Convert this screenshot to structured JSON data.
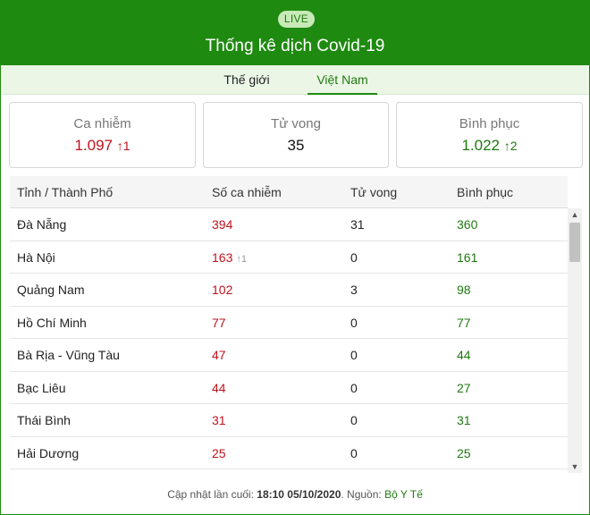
{
  "header": {
    "live_badge": "LIVE",
    "title": "Thống kê dịch Covid-19"
  },
  "tabs": [
    {
      "label": "Thế giới",
      "active": false
    },
    {
      "label": "Việt Nam",
      "active": true
    }
  ],
  "summary": {
    "cases": {
      "label": "Ca nhiễm",
      "value": "1.097",
      "delta": "1"
    },
    "deaths": {
      "label": "Tử vong",
      "value": "35"
    },
    "recovered": {
      "label": "Bình phục",
      "value": "1.022",
      "delta": "2"
    }
  },
  "table": {
    "headers": [
      "Tỉnh / Thành Phố",
      "Số ca nhiễm",
      "Tử vong",
      "Bình phục"
    ],
    "rows": [
      {
        "province": "Đà Nẵng",
        "cases": "394",
        "cases_delta": "",
        "deaths": "31",
        "recovered": "360"
      },
      {
        "province": "Hà Nội",
        "cases": "163",
        "cases_delta": "1",
        "deaths": "0",
        "recovered": "161"
      },
      {
        "province": "Quảng Nam",
        "cases": "102",
        "cases_delta": "",
        "deaths": "3",
        "recovered": "98"
      },
      {
        "province": "Hồ Chí Minh",
        "cases": "77",
        "cases_delta": "",
        "deaths": "0",
        "recovered": "77"
      },
      {
        "province": "Bà Rịa - Vũng Tàu",
        "cases": "47",
        "cases_delta": "",
        "deaths": "0",
        "recovered": "44"
      },
      {
        "province": "Bạc Liêu",
        "cases": "44",
        "cases_delta": "",
        "deaths": "0",
        "recovered": "27"
      },
      {
        "province": "Thái Bình",
        "cases": "31",
        "cases_delta": "",
        "deaths": "0",
        "recovered": "31"
      },
      {
        "province": "Hải Dương",
        "cases": "25",
        "cases_delta": "",
        "deaths": "0",
        "recovered": "25"
      }
    ]
  },
  "footer": {
    "prefix": "Cập nhật lần cuối: ",
    "updated": "18:10 05/10/2020",
    "source_prefix": ". Nguồn: ",
    "source": "Bộ Y Tế"
  },
  "colors": {
    "brand_green": "#1f8a10",
    "case_red": "#c0121c",
    "recovered_green": "#1f7a10"
  },
  "icons": {
    "increase": "arrow-up-icon",
    "scroll_up": "triangle-up-icon",
    "scroll_down": "triangle-down-icon"
  }
}
